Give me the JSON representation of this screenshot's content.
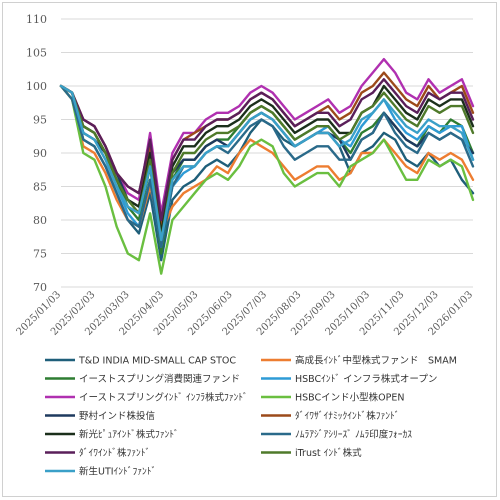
{
  "chart_data": {
    "type": "line",
    "title": "",
    "xlabel": "",
    "ylabel": "",
    "ylim": [
      70,
      110
    ],
    "yticks": [
      "70",
      "75",
      "80",
      "85",
      "90",
      "95",
      "100",
      "105",
      "110"
    ],
    "x_tick_labels": [
      "2025/01/03",
      "2025/02/03",
      "2025/03/03",
      "2025/04/03",
      "2025/05/03",
      "2025/06/03",
      "2025/07/03",
      "2025/08/03",
      "2025/09/03",
      "2025/10/03",
      "2025/11/03",
      "2025/12/03",
      "2026/01/03"
    ],
    "grid": "horizontal",
    "legend_position": "bottom",
    "series": [
      {
        "name": "T&D INDIA MID-SMALL CAP STOC",
        "color": "#1f5f7a",
        "values": [
          100,
          99,
          92,
          91,
          88,
          84,
          80,
          78,
          84,
          74,
          83,
          85,
          86,
          88,
          89,
          88,
          90,
          93,
          95,
          94,
          92,
          91,
          92,
          93,
          93,
          91,
          87,
          90,
          91,
          93,
          92,
          89,
          88,
          90,
          88,
          89,
          86,
          84
        ]
      },
      {
        "name": "高成長ｲﾝﾄﾞ中型株式ファンド　SMAM",
        "color": "#ed7d31",
        "values": [
          100,
          98,
          91,
          90,
          87,
          83,
          80,
          79,
          85,
          78,
          82,
          84,
          85,
          86,
          88,
          87,
          90,
          92,
          91,
          90,
          88,
          86,
          87,
          88,
          88,
          86,
          87,
          90,
          90,
          92,
          90,
          88,
          87,
          90,
          89,
          90,
          89,
          86
        ]
      },
      {
        "name": "イーストスプリング消費関連ファンド",
        "color": "#2e7d32",
        "values": [
          100,
          99,
          94,
          93,
          90,
          86,
          82,
          80,
          88,
          75,
          86,
          89,
          89,
          91,
          92,
          92,
          94,
          96,
          97,
          96,
          94,
          92,
          93,
          94,
          94,
          92,
          90,
          93,
          94,
          96,
          94,
          92,
          91,
          94,
          93,
          95,
          94,
          90
        ]
      },
      {
        "name": "HSBCｲﾝﾄﾞ インフラ株式オープン",
        "color": "#2e9bd6",
        "values": [
          100,
          99,
          93,
          92,
          89,
          85,
          81,
          79,
          86,
          76,
          85,
          87,
          88,
          90,
          91,
          91,
          93,
          95,
          96,
          95,
          93,
          91,
          92,
          93,
          94,
          92,
          91,
          94,
          96,
          98,
          95,
          93,
          92,
          94,
          93,
          94,
          94,
          89
        ]
      },
      {
        "name": "イーストスプリングｲﾝﾄﾞ ｲﾝﾌﾗ株式ﾌｧﾝﾄﾞ",
        "color": "#b030b0",
        "values": [
          100,
          99,
          95,
          94,
          91,
          87,
          84,
          83,
          93,
          81,
          90,
          93,
          93,
          95,
          96,
          96,
          97,
          99,
          100,
          99,
          97,
          95,
          96,
          97,
          98,
          96,
          97,
          100,
          102,
          104,
          102,
          99,
          98,
          101,
          99,
          100,
          101,
          97
        ]
      },
      {
        "name": "HSBCインド小型株OPEN",
        "color": "#6abf40",
        "values": [
          100,
          98,
          90,
          89,
          85,
          79,
          75,
          74,
          81,
          72,
          80,
          82,
          84,
          86,
          87,
          86,
          88,
          91,
          92,
          91,
          87,
          85,
          86,
          87,
          87,
          85,
          88,
          89,
          90,
          92,
          89,
          86,
          86,
          89,
          88,
          89,
          88,
          83
        ]
      },
      {
        "name": "野村インド株投信",
        "color": "#1e3a5f",
        "values": [
          100,
          99,
          93,
          92,
          90,
          87,
          83,
          82,
          89,
          79,
          87,
          89,
          89,
          91,
          92,
          91,
          93,
          95,
          96,
          95,
          93,
          91,
          92,
          93,
          93,
          92,
          89,
          92,
          93,
          96,
          94,
          92,
          91,
          93,
          92,
          93,
          92,
          90
        ]
      },
      {
        "name": "ﾀﾞｲﾜｻﾞｲﾅﾐｯｸｲﾝﾄﾞ株ﾌｧﾝﾄﾞ",
        "color": "#9c4a1a",
        "values": [
          100,
          99,
          95,
          94,
          91,
          87,
          85,
          84,
          91,
          79,
          89,
          92,
          93,
          94,
          95,
          95,
          96,
          98,
          99,
          98,
          96,
          94,
          95,
          96,
          97,
          95,
          96,
          99,
          100,
          102,
          100,
          98,
          97,
          100,
          98,
          99,
          100,
          96
        ]
      },
      {
        "name": "新光ﾋﾟｭｱｲﾝﾄﾞ株式ﾌｧﾝﾄﾞ",
        "color": "#1b2f1b",
        "values": [
          100,
          99,
          94,
          93,
          90,
          86,
          83,
          82,
          90,
          78,
          88,
          91,
          91,
          93,
          94,
          94,
          95,
          97,
          98,
          97,
          95,
          93,
          94,
          95,
          95,
          93,
          93,
          96,
          97,
          100,
          98,
          96,
          95,
          98,
          97,
          98,
          98,
          94
        ]
      },
      {
        "name": "ﾉﾑﾗｱｼﾞｱｼﾘｰｽﾞ ﾉﾑﾗ印度ﾌｫｰｶｽ",
        "color": "#2a6a8a",
        "values": [
          100,
          98,
          92,
          91,
          88,
          84,
          80,
          79,
          86,
          76,
          85,
          88,
          88,
          90,
          91,
          90,
          92,
          94,
          95,
          94,
          91,
          89,
          90,
          91,
          91,
          89,
          89,
          92,
          93,
          96,
          93,
          91,
          90,
          93,
          92,
          93,
          92,
          88
        ]
      },
      {
        "name": "ﾀﾞｲﾜｲﾝﾄﾞ株ﾌｧﾝﾄﾞ",
        "color": "#5a1f5a",
        "values": [
          100,
          99,
          95,
          94,
          91,
          87,
          85,
          84,
          92,
          80,
          89,
          92,
          92,
          94,
          95,
          95,
          96,
          98,
          99,
          98,
          96,
          94,
          95,
          96,
          96,
          94,
          95,
          98,
          99,
          101,
          99,
          97,
          96,
          99,
          98,
          99,
          99,
          95
        ]
      },
      {
        "name": "iTrust ｲﾝﾄﾞ株式",
        "color": "#4f7a2a",
        "values": [
          100,
          99,
          94,
          93,
          90,
          86,
          83,
          81,
          89,
          77,
          87,
          90,
          90,
          92,
          93,
          93,
          94,
          96,
          97,
          96,
          94,
          92,
          93,
          94,
          94,
          92,
          93,
          96,
          97,
          99,
          97,
          95,
          94,
          97,
          96,
          97,
          97,
          93
        ]
      },
      {
        "name": "新生UTIｲﾝﾄﾞﾌｧﾝﾄﾞ",
        "color": "#3aa0c8",
        "values": [
          100,
          99,
          93,
          92,
          89,
          85,
          82,
          81,
          88,
          77,
          86,
          88,
          88,
          90,
          91,
          91,
          93,
          95,
          96,
          95,
          93,
          91,
          92,
          93,
          93,
          91,
          92,
          95,
          96,
          98,
          96,
          94,
          93,
          95,
          94,
          94,
          93,
          89
        ]
      }
    ]
  }
}
